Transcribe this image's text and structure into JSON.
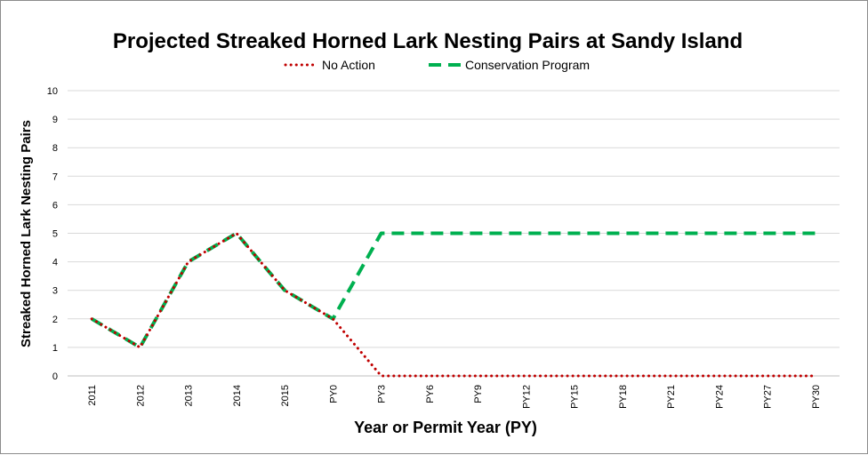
{
  "chart_data": {
    "type": "line",
    "title": "Projected Streaked Horned Lark Nesting Pairs at Sandy Island",
    "xlabel": "Year or Permit Year (PY)",
    "ylabel": "Streaked Horned Lark Nesting Pairs",
    "categories": [
      "2011",
      "2012",
      "2013",
      "2014",
      "2015",
      "PY0",
      "PY3",
      "PY6",
      "PY9",
      "PY12",
      "PY15",
      "PY18",
      "PY21",
      "PY24",
      "PY27",
      "PY30"
    ],
    "yticks": [
      "0",
      "1",
      "2",
      "3",
      "4",
      "5",
      "6",
      "7",
      "8",
      "9",
      "10"
    ],
    "ylim": [
      0,
      10
    ],
    "grid": true,
    "legend_position": "top",
    "series": [
      {
        "name": "No Action",
        "color": "#c00000",
        "style": "dotted",
        "values": [
          2,
          1,
          4,
          5,
          3,
          2,
          0,
          0,
          0,
          0,
          0,
          0,
          0,
          0,
          0,
          0
        ]
      },
      {
        "name": "Conservation Program",
        "color": "#00b050",
        "style": "dashed",
        "values": [
          2,
          1,
          4,
          5,
          3,
          2,
          5,
          5,
          5,
          5,
          5,
          5,
          5,
          5,
          5,
          5
        ]
      }
    ]
  }
}
